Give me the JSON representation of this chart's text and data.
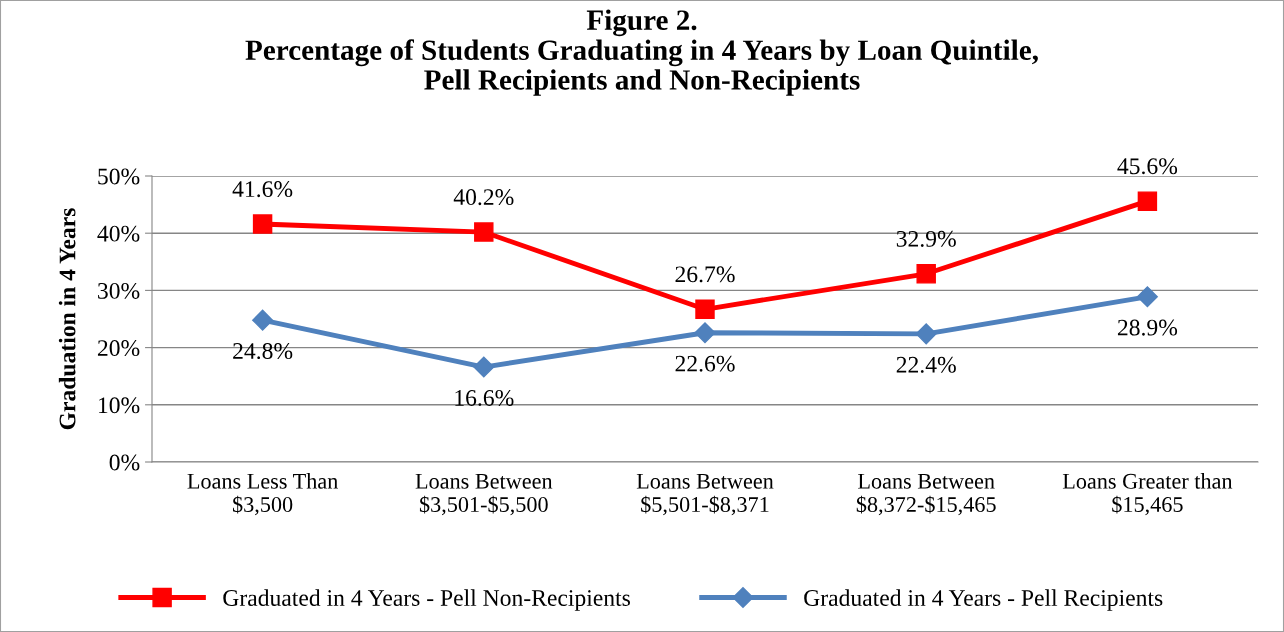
{
  "chart_data": {
    "type": "line",
    "title": "Figure 2.\nPercentage of Students Graduating in 4 Years by Loan Quintile,\nPell Recipients and Non-Recipients",
    "ylabel": "Graduation in 4 Years",
    "categories": [
      "Loans Less Than\n$3,500",
      "Loans Between\n$3,501-$5,500",
      "Loans Between\n$5,501-$8,371",
      "Loans Between\n$8,372-$15,465",
      "Loans Greater than\n$15,465"
    ],
    "series": [
      {
        "name": "Graduated in 4 Years - Pell Non-Recipients",
        "color": "#ff0000",
        "marker": "square",
        "values": [
          41.6,
          40.2,
          26.7,
          32.9,
          45.6
        ],
        "value_labels": [
          "41.6%",
          "40.2%",
          "26.7%",
          "32.9%",
          "45.6%"
        ]
      },
      {
        "name": "Graduated in 4 Years - Pell Recipients",
        "color": "#4f81bd",
        "marker": "diamond",
        "values": [
          24.8,
          16.6,
          22.6,
          22.4,
          28.9
        ],
        "value_labels": [
          "24.8%",
          "16.6%",
          "22.6%",
          "22.4%",
          "28.9%"
        ]
      }
    ],
    "ylim": [
      0,
      50
    ],
    "yticks": [
      {
        "value": 0,
        "label": "0%"
      },
      {
        "value": 10,
        "label": "10%"
      },
      {
        "value": 20,
        "label": "20%"
      },
      {
        "value": 30,
        "label": "30%"
      },
      {
        "value": 40,
        "label": "40%"
      },
      {
        "value": 50,
        "label": "50%"
      }
    ],
    "grid": "y",
    "legend": "bottom",
    "line_style": "solid"
  }
}
